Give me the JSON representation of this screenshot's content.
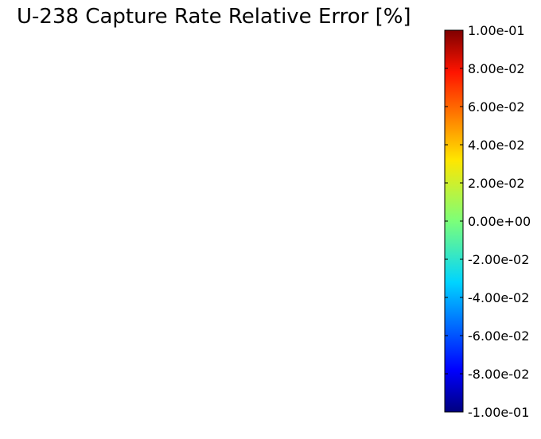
{
  "chart_data": {
    "type": "heatmap",
    "title": "U-238 Capture Rate Relative Error [%]",
    "xlabel": "",
    "ylabel": "",
    "values": [],
    "colorbar": {
      "colormap": "jet",
      "range": [
        -0.1,
        0.1
      ],
      "ticks": [
        {
          "value": 0.1,
          "label": "1.00e-01"
        },
        {
          "value": 0.08,
          "label": "8.00e-02"
        },
        {
          "value": 0.06,
          "label": "6.00e-02"
        },
        {
          "value": 0.04,
          "label": "4.00e-02"
        },
        {
          "value": 0.02,
          "label": "2.00e-02"
        },
        {
          "value": 0.0,
          "label": "0.00e+00"
        },
        {
          "value": -0.02,
          "label": "-2.00e-02"
        },
        {
          "value": -0.04,
          "label": "-4.00e-02"
        },
        {
          "value": -0.06,
          "label": "-6.00e-02"
        },
        {
          "value": -0.08,
          "label": "-8.00e-02"
        },
        {
          "value": -0.1,
          "label": "-1.00e-01"
        }
      ],
      "placement": "right"
    },
    "grid": false
  }
}
